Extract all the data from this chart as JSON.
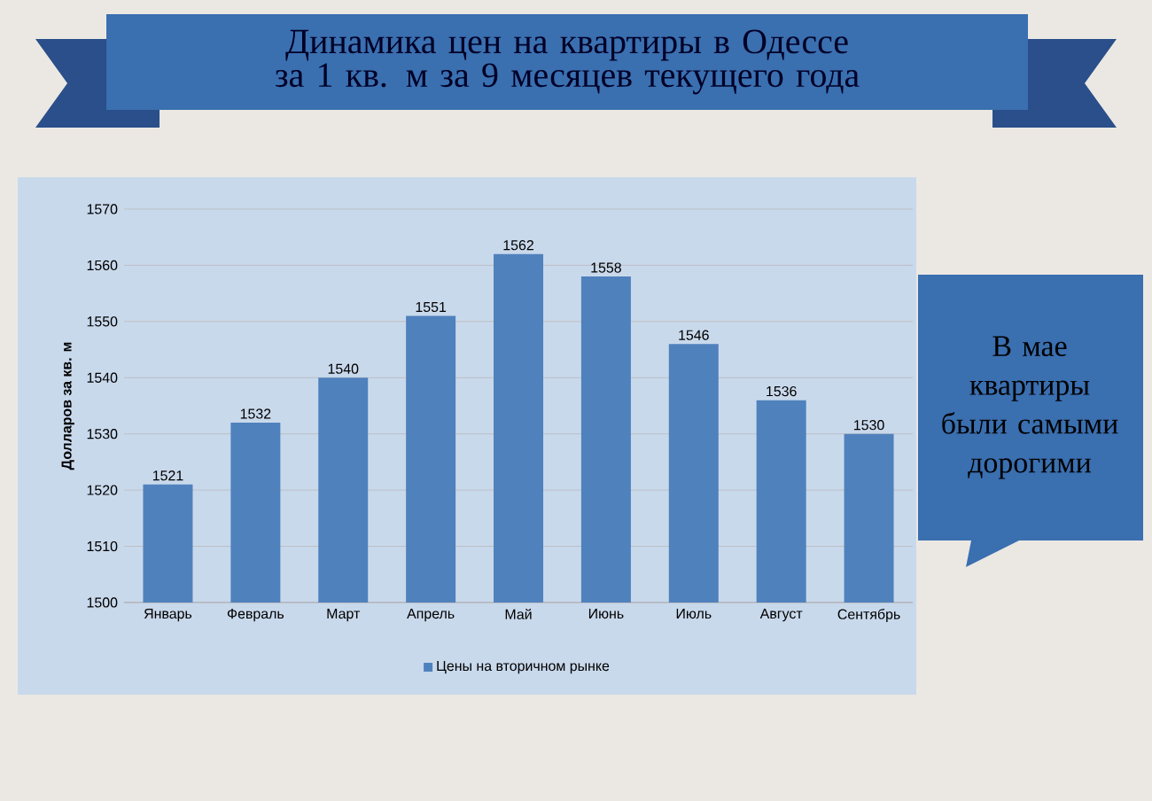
{
  "chart_data": {
    "type": "bar",
    "title": "Динамика цен на квартиры в Одессе за 1 кв. м за 9 месяцев текущего года",
    "categories": [
      "Январь",
      "Февраль",
      "Март",
      "Апрель",
      "Май",
      "Июнь",
      "Июль",
      "Август",
      "Сентябрь"
    ],
    "series": [
      {
        "name": "Цены на вторичном рынке",
        "color": "#4f81bd",
        "values": [
          1521,
          1532,
          1540,
          1551,
          1562,
          1558,
          1546,
          1536,
          1530
        ]
      }
    ],
    "ylabel": "Долларов за кв. м",
    "ylim": [
      1500,
      1570
    ],
    "yticks": [
      1500,
      1510,
      1520,
      1530,
      1540,
      1550,
      1560,
      1570
    ],
    "grid": "y",
    "data_labels": true,
    "legend": "bottom",
    "annotations": [
      "В мае квартиры были самыми дорогими"
    ]
  }
}
